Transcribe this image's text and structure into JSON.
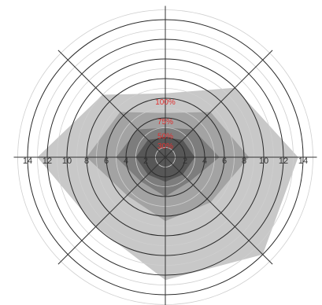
{
  "chart_data": {
    "type": "radar",
    "radial_range": [
      0,
      15
    ],
    "ring_values": [
      1,
      2,
      3,
      4,
      5,
      6,
      7,
      8,
      9,
      10,
      11,
      12,
      13,
      14,
      15
    ],
    "axis_tick_values": [
      2,
      4,
      6,
      8,
      10,
      12,
      14
    ],
    "axis_tick_labels_left": [
      "14",
      "12",
      "10",
      "8",
      "6",
      "4",
      "2"
    ],
    "axis_tick_labels_right": [
      "2",
      "4",
      "6",
      "8",
      "10",
      "12",
      "14"
    ],
    "spoke_angles_deg": [
      0,
      45,
      90,
      135,
      180,
      225,
      270,
      315
    ],
    "grid": true,
    "layers": [
      {
        "name": "100%",
        "color": "#c8c8c8",
        "values": [
          13.5,
          10,
          6.5,
          9,
          13,
          10,
          12.5,
          14
        ]
      },
      {
        "name": "75%",
        "color": "#a3a3a3",
        "values": [
          8.5,
          6.5,
          4.5,
          6.5,
          8,
          5.5,
          6.5,
          6.5
        ]
      },
      {
        "name": "50%",
        "color": "#7d7d7d",
        "values": [
          5.5,
          4,
          3,
          4,
          5,
          3.5,
          4,
          3.5
        ]
      },
      {
        "name": "30%",
        "color": "#575757",
        "values": [
          3,
          2.5,
          2,
          2.5,
          3,
          2.5,
          2.5,
          2.5
        ]
      }
    ],
    "label_color": "#e03030"
  }
}
